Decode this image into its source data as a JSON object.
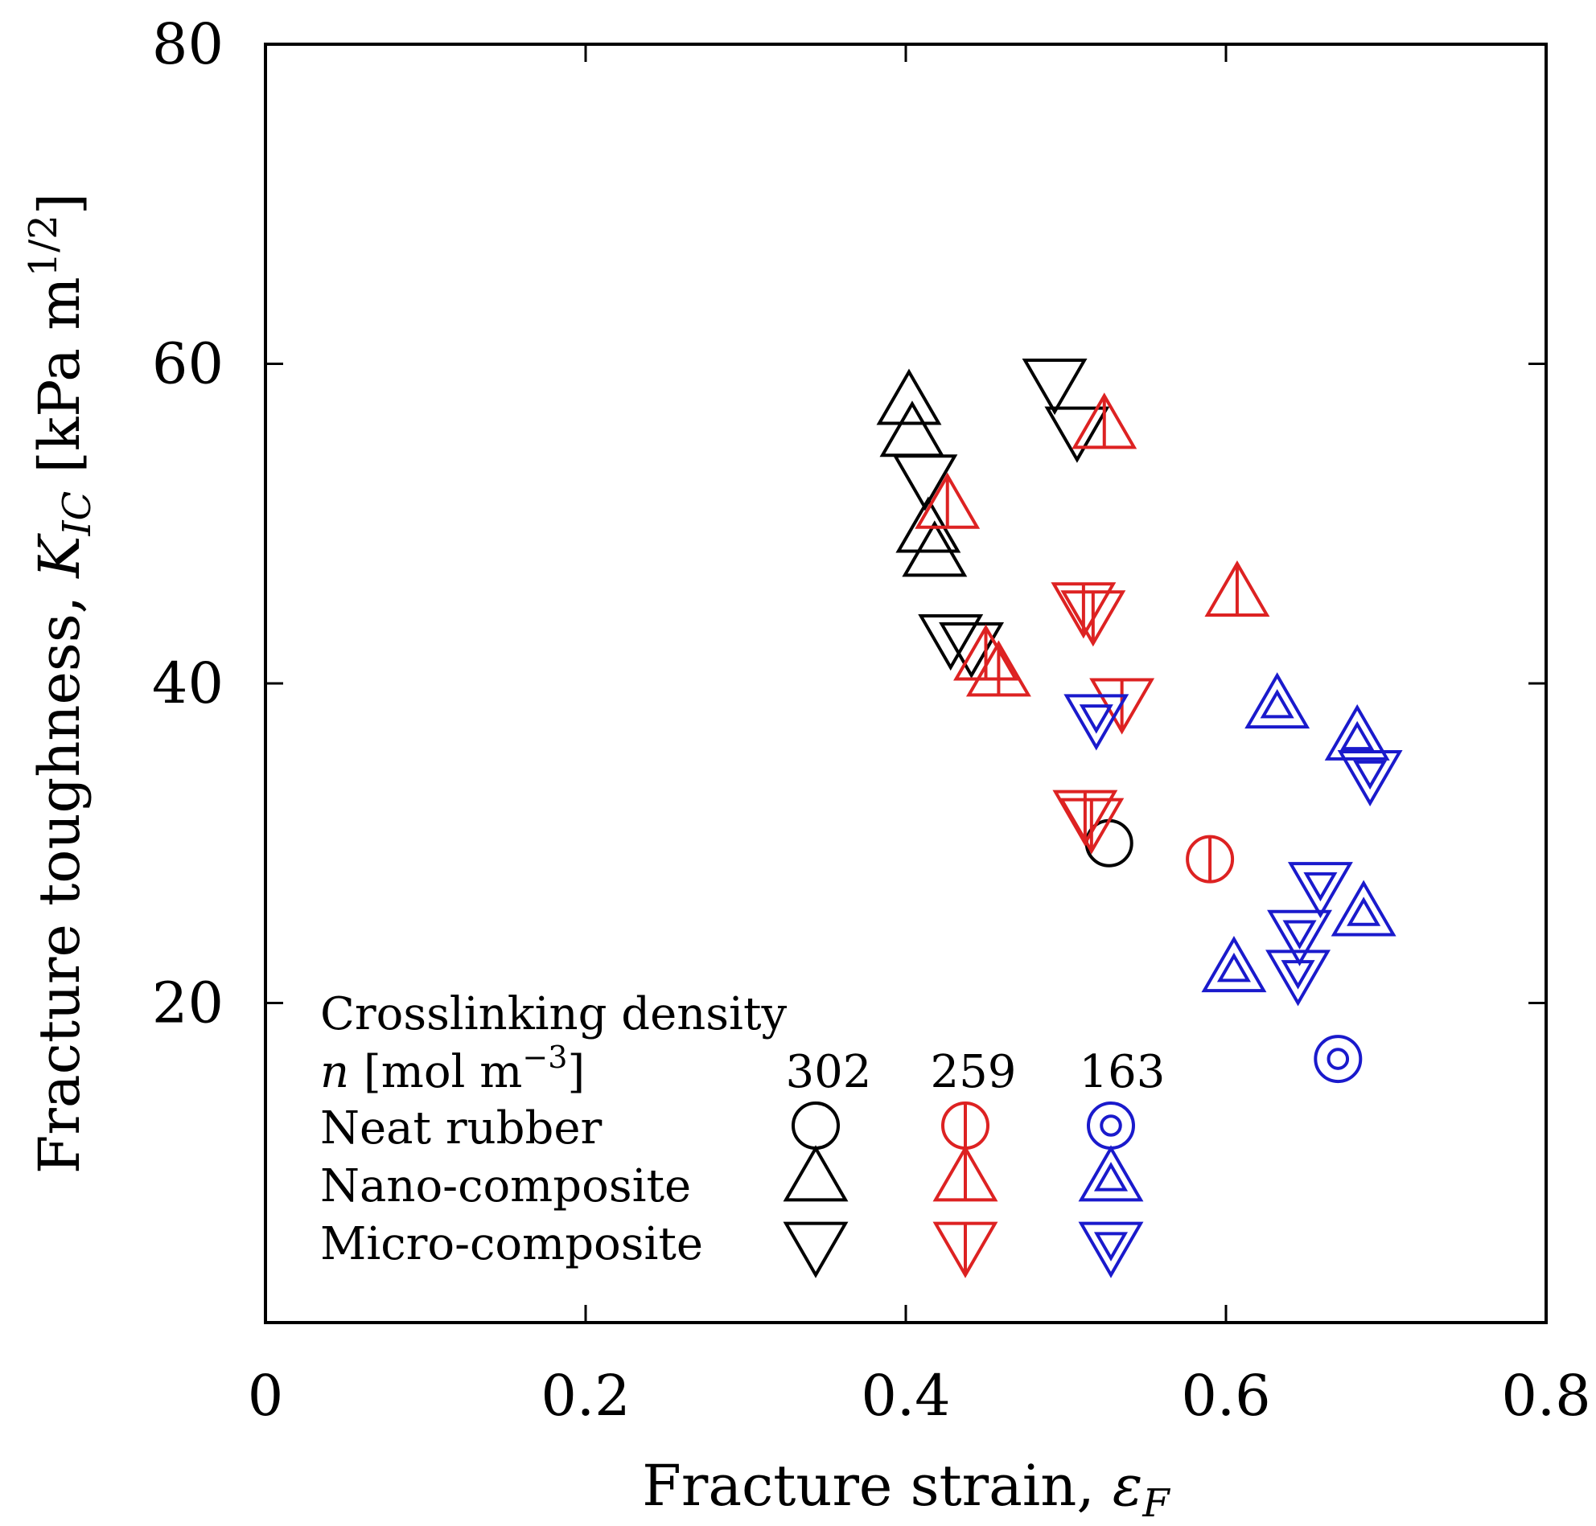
{
  "chart_data": {
    "type": "scatter",
    "xlabel": "Fracture strain, ",
    "xlabel_symbol": "ε",
    "xlabel_sub": "F",
    "ylabel": "Fracture toughness, ",
    "ylabel_symbol": "K",
    "ylabel_sub": "IC",
    "ylabel_unit": " [kPa m",
    "ylabel_unit_sup": "1/2",
    "ylabel_unit_close": "]",
    "xlim": [
      0,
      0.8
    ],
    "ylim": [
      0,
      80
    ],
    "x_ticks": [
      {
        "value": 0,
        "label": "0"
      },
      {
        "value": 0.2,
        "label": "0.2"
      },
      {
        "value": 0.4,
        "label": "0.4"
      },
      {
        "value": 0.6,
        "label": "0.6"
      },
      {
        "value": 0.8,
        "label": "0.8"
      }
    ],
    "y_ticks": [
      {
        "value": 20,
        "label": "20"
      },
      {
        "value": 40,
        "label": "40"
      },
      {
        "value": 60,
        "label": "60"
      },
      {
        "value": 80,
        "label": "80"
      }
    ],
    "grid": false,
    "legend_title": "Crosslinking density",
    "legend_n_italic": "n",
    "legend_n_unit": " [mol m",
    "legend_n_sup": "−3",
    "legend_n_close": "]",
    "legend_densities": [
      "302",
      "259",
      "163"
    ],
    "legend_rows": [
      "Neat rubber",
      "Nano-composite",
      "Micro-composite"
    ],
    "legend_placement": "bottom-left",
    "colors": {
      "302": "#000000",
      "259": "#dd2222",
      "163": "#1a1acc"
    },
    "series": [
      {
        "name": "Neat rubber",
        "density": "302",
        "marker": "circle",
        "points": [
          [
            0.527,
            30.0
          ]
        ]
      },
      {
        "name": "Nano-composite",
        "density": "302",
        "marker": "triangle-up",
        "points": [
          [
            0.402,
            57.5
          ],
          [
            0.404,
            55.5
          ],
          [
            0.414,
            49.5
          ],
          [
            0.418,
            48.0
          ]
        ]
      },
      {
        "name": "Micro-composite",
        "density": "302",
        "marker": "triangle-down",
        "points": [
          [
            0.412,
            53.0
          ],
          [
            0.428,
            43.0
          ],
          [
            0.441,
            42.5
          ],
          [
            0.493,
            59.0
          ],
          [
            0.507,
            56.0
          ]
        ]
      },
      {
        "name": "Neat rubber",
        "density": "259",
        "marker": "circle",
        "points": [
          [
            0.59,
            29.0
          ]
        ]
      },
      {
        "name": "Nano-composite",
        "density": "259",
        "marker": "triangle-up",
        "points": [
          [
            0.426,
            51.0
          ],
          [
            0.45,
            41.5
          ],
          [
            0.458,
            40.5
          ],
          [
            0.524,
            56.0
          ],
          [
            0.607,
            45.5
          ]
        ]
      },
      {
        "name": "Micro-composite",
        "density": "259",
        "marker": "triangle-down",
        "points": [
          [
            0.511,
            45.0
          ],
          [
            0.517,
            44.5
          ],
          [
            0.512,
            32.0
          ],
          [
            0.516,
            31.5
          ],
          [
            0.535,
            39.0
          ]
        ]
      },
      {
        "name": "Neat rubber",
        "density": "163",
        "marker": "circle",
        "points": [
          [
            0.67,
            16.5
          ]
        ]
      },
      {
        "name": "Nano-composite",
        "density": "163",
        "marker": "triangle-up",
        "points": [
          [
            0.605,
            22.0
          ],
          [
            0.632,
            38.5
          ],
          [
            0.682,
            36.5
          ],
          [
            0.686,
            25.5
          ]
        ]
      },
      {
        "name": "Micro-composite",
        "density": "163",
        "marker": "triangle-down",
        "points": [
          [
            0.519,
            38.0
          ],
          [
            0.659,
            27.5
          ],
          [
            0.646,
            24.5
          ],
          [
            0.645,
            22.0
          ],
          [
            0.69,
            34.5
          ]
        ]
      }
    ]
  }
}
